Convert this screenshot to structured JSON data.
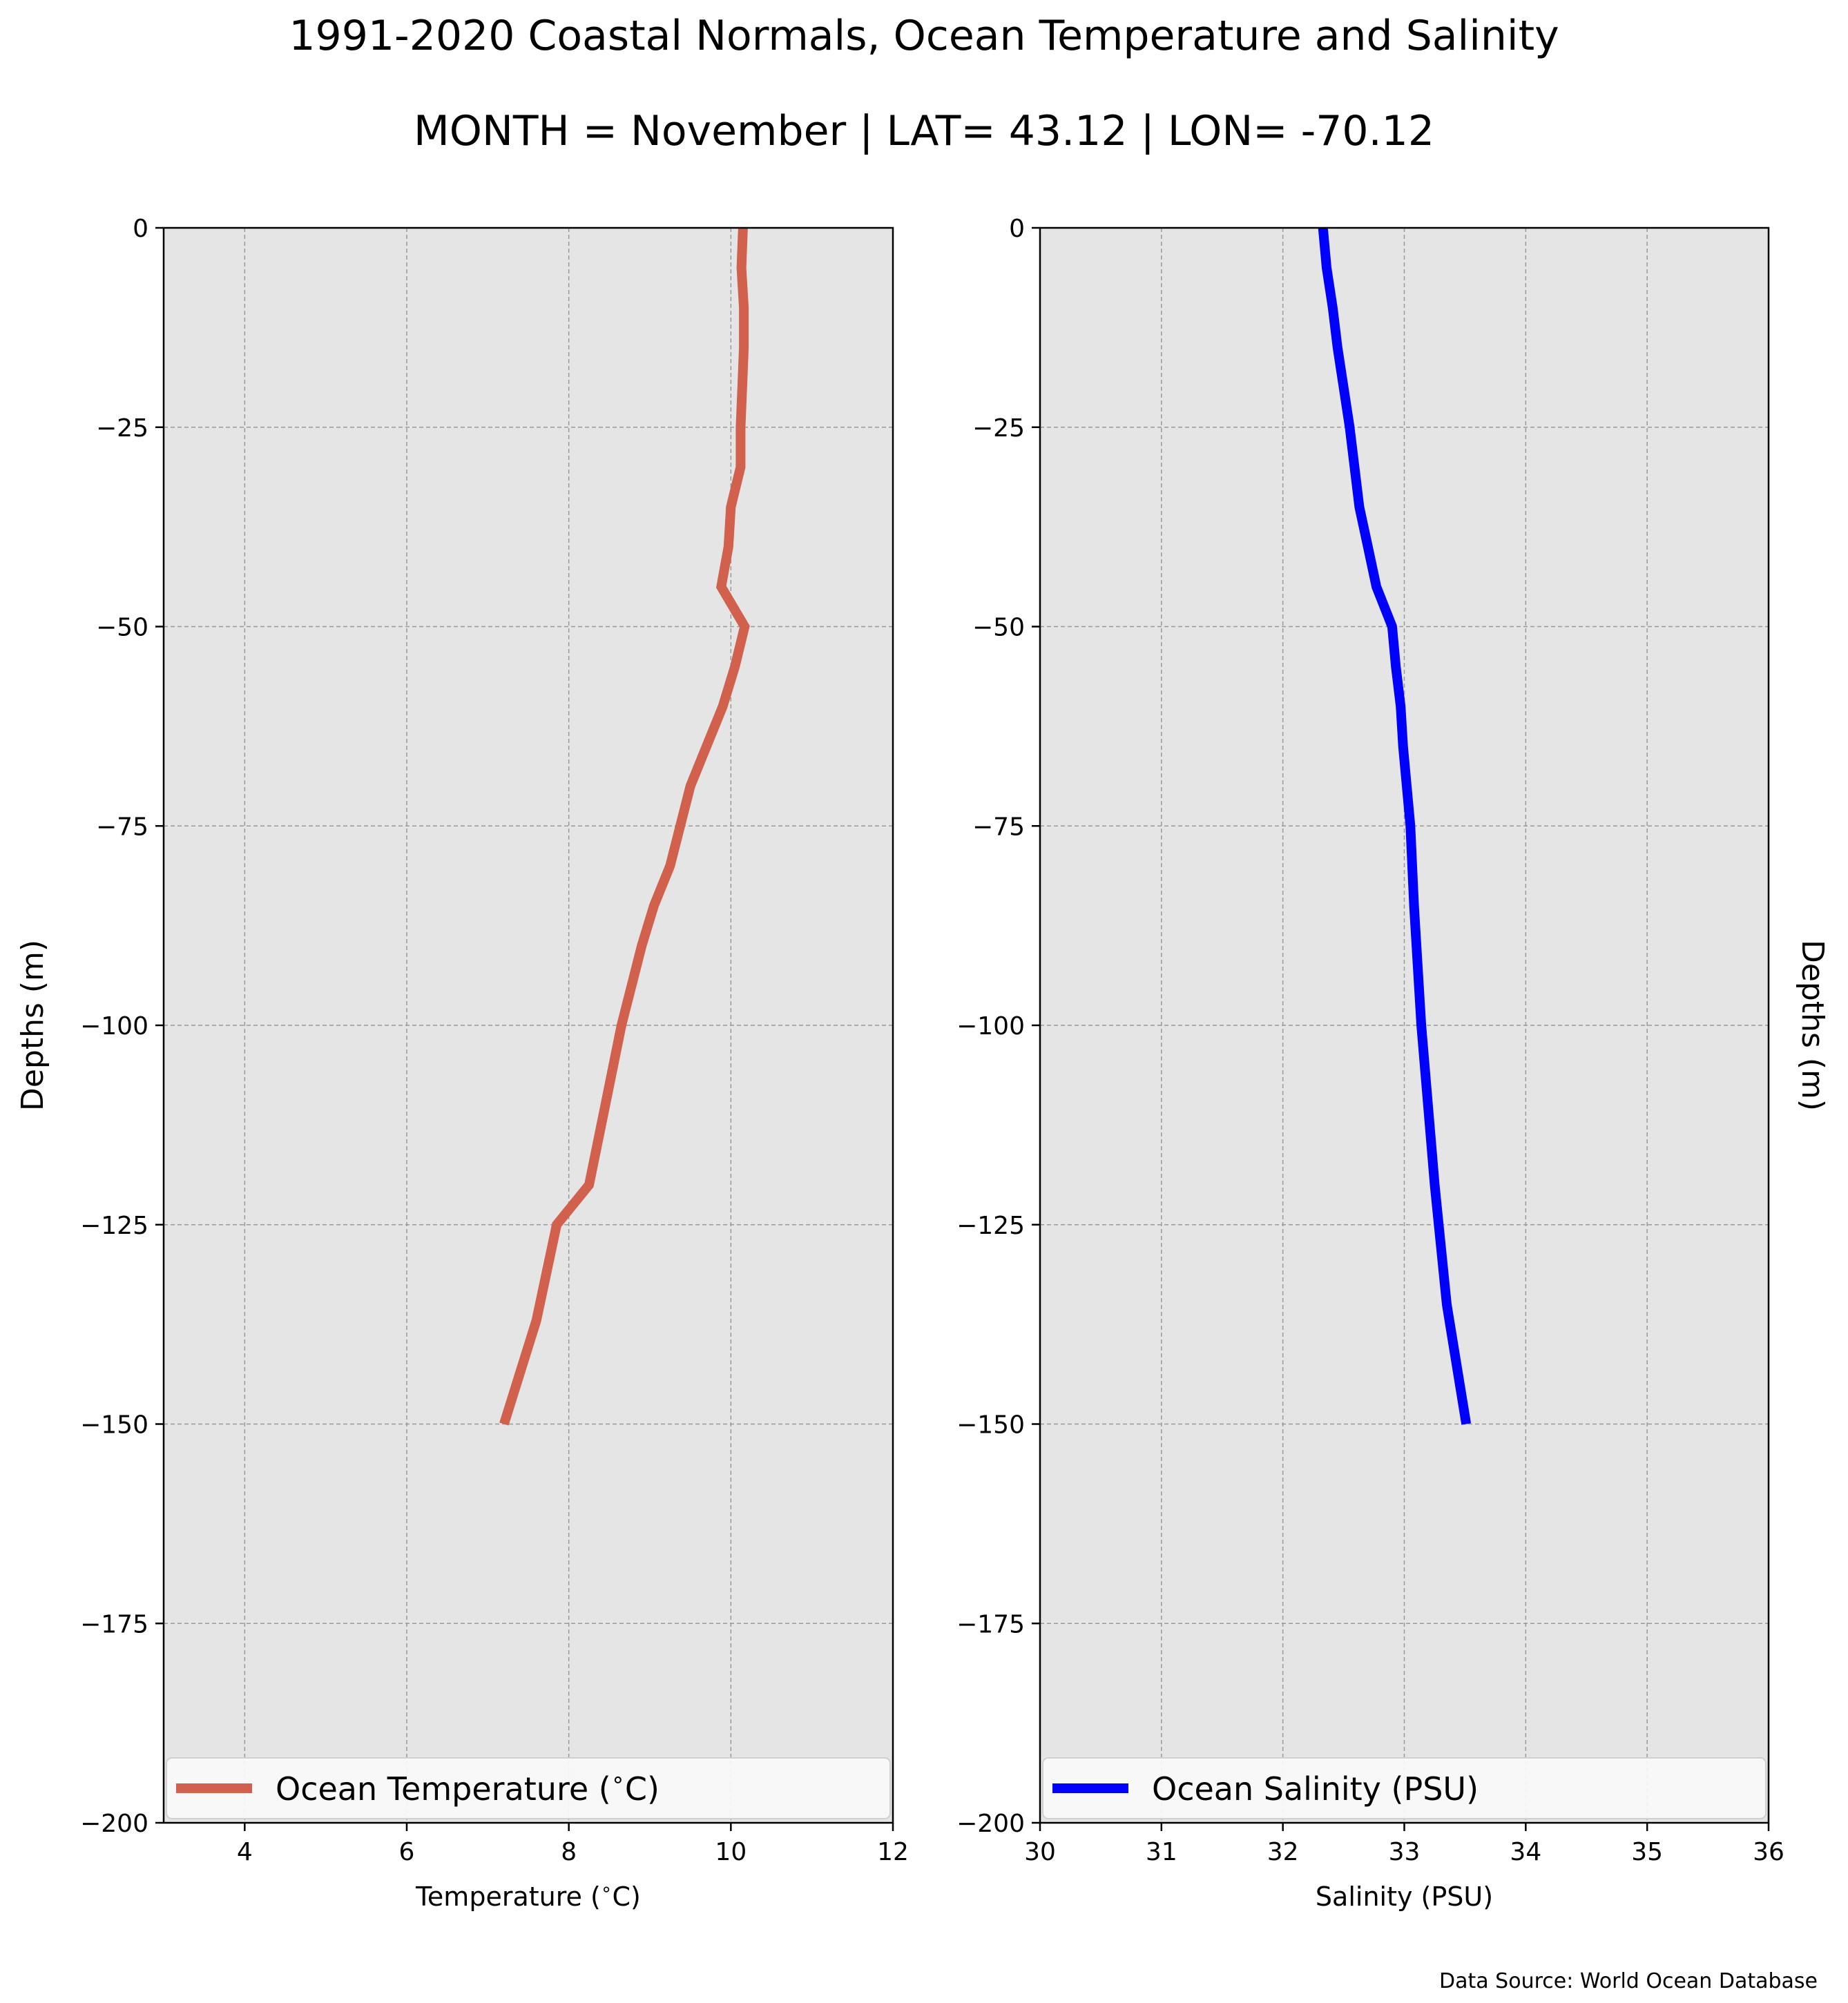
{
  "title": "1991-2020 Coastal Normals, Ocean Temperature and Salinity",
  "subtitle": "MONTH = November | LAT= 43.12 | LON= -70.12",
  "source_note": "Data Source: World Ocean Database",
  "colors": {
    "panel_bg": "#e5e5e5",
    "grid": "#9a9a9a",
    "temperature_line": "#d1604d",
    "salinity_line": "#0000ff"
  },
  "chart_data": [
    {
      "type": "line",
      "xlabel": "Temperature ($^\\circ$C)",
      "ylabel": "Depths (m)",
      "ylabel_side": "left",
      "xlim": [
        3,
        12
      ],
      "ylim": [
        -200,
        0
      ],
      "xticks": [
        "4",
        "6",
        "8",
        "10",
        "12"
      ],
      "xtick_values": [
        4,
        6,
        8,
        10,
        12
      ],
      "yticks": [
        "0",
        "−25",
        "−50",
        "−75",
        "−100",
        "−125",
        "−150",
        "−175",
        "−200"
      ],
      "ytick_values": [
        0,
        -25,
        -50,
        -75,
        -100,
        -125,
        -150,
        -175,
        -200
      ],
      "grid": true,
      "legend_position": "bottom",
      "series": [
        {
          "name": "Ocean Temperature ($^\\circ$C)",
          "color": "#d1604d",
          "x": [
            10.15,
            10.13,
            10.16,
            10.16,
            10.14,
            10.12,
            10.12,
            10.0,
            9.97,
            9.88,
            10.17,
            10.05,
            9.9,
            9.7,
            9.5,
            9.25,
            9.05,
            8.9,
            8.65,
            8.45,
            8.25,
            7.85,
            7.6,
            7.2
          ],
          "y": [
            0,
            -5,
            -10,
            -15,
            -20,
            -25,
            -30,
            -35,
            -40,
            -45,
            -50,
            -55,
            -60,
            -65,
            -70,
            -80,
            -85,
            -90,
            -100,
            -110,
            -120,
            -125,
            -137,
            -150
          ]
        }
      ]
    },
    {
      "type": "line",
      "xlabel": "Salinity (PSU)",
      "ylabel": "Depths (m)",
      "ylabel_side": "right",
      "xlim": [
        30,
        36
      ],
      "ylim": [
        -200,
        0
      ],
      "xticks": [
        "30",
        "31",
        "32",
        "33",
        "34",
        "35",
        "36"
      ],
      "xtick_values": [
        30,
        31,
        32,
        33,
        34,
        35,
        36
      ],
      "yticks": [
        "0",
        "−25",
        "−50",
        "−75",
        "−100",
        "−125",
        "−150",
        "−175",
        "−200"
      ],
      "ytick_values": [
        0,
        -25,
        -50,
        -75,
        -100,
        -125,
        -150,
        -175,
        -200
      ],
      "grid": true,
      "legend_position": "bottom",
      "series": [
        {
          "name": "Ocean Salinity (PSU)",
          "color": "#0000ff",
          "x": [
            32.33,
            32.36,
            32.41,
            32.45,
            32.5,
            32.55,
            32.59,
            32.63,
            32.7,
            32.77,
            32.9,
            32.93,
            32.97,
            32.99,
            33.02,
            33.05,
            33.08,
            33.14,
            33.25,
            33.35,
            33.51
          ],
          "y": [
            0,
            -5,
            -10,
            -15,
            -20,
            -25,
            -30,
            -35,
            -40,
            -45,
            -50,
            -55,
            -60,
            -65,
            -70,
            -75,
            -85,
            -100,
            -120,
            -135,
            -150
          ]
        }
      ]
    }
  ]
}
